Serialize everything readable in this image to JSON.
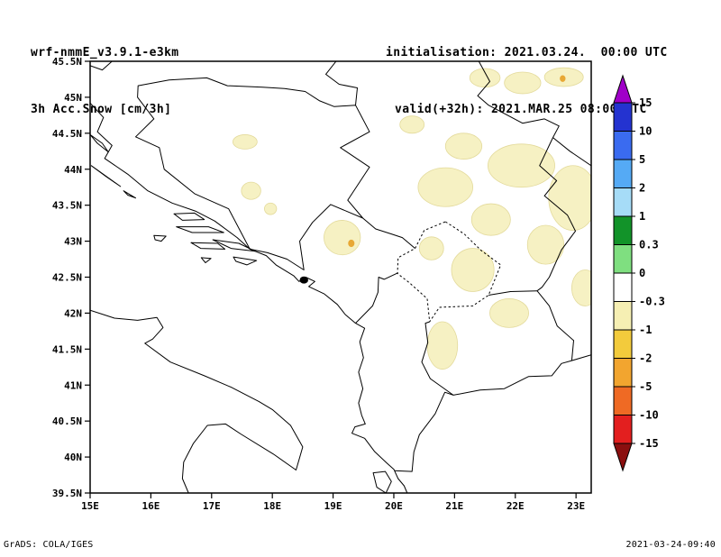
{
  "header": {
    "model": "wrf-nmmE_v3.9.1-e3km",
    "product": "3h Acc.Snow [cm/3h]",
    "init_line": "initialisation: 2021.03.24.  00:00 UTC",
    "valid_line": "valid(+32h): 2021.MAR.25 08:00 UTC"
  },
  "footer": {
    "credit": "GrADS: COLA/IGES",
    "generated": "2021-03-24-09:40"
  },
  "chart_data": {
    "type": "heatmap",
    "title": "3h Acc.Snow [cm/3h]",
    "model": "wrf-nmmE_v3.9.1-e3km",
    "lon_ticks": [
      "15E",
      "16E",
      "17E",
      "18E",
      "19E",
      "20E",
      "21E",
      "22E",
      "23E"
    ],
    "lat_ticks": [
      "45.5N",
      "45N",
      "44.5N",
      "44N",
      "43.5N",
      "43N",
      "42.5N",
      "42N",
      "41.5N",
      "41N",
      "40.5N",
      "40N",
      "39.5N"
    ],
    "lon_range": [
      15,
      23.25
    ],
    "lat_range": [
      39.5,
      45.5
    ],
    "colorbar_levels": [
      "15",
      "10",
      "5",
      "2",
      "1",
      "0.3",
      "0",
      "-0.3",
      "-1",
      "-2",
      "-5",
      "-10",
      "-15"
    ],
    "colorbar_colors": [
      "#a000c8",
      "#2433d0",
      "#3a6bf0",
      "#55aaf5",
      "#a6dcf7",
      "#129329",
      "#7fdf80",
      "#ffffff",
      "#f6efb3",
      "#f3cb3c",
      "#f2a52f",
      "#ef6a24",
      "#e31f1f",
      "#8b0f0f"
    ],
    "grid": false,
    "legend_position": "right"
  },
  "map": {
    "stroke": "#000000",
    "snow_fill": "#f6f1c3",
    "snow_edge": "#e3da9b",
    "dot_fill": "#e8a835",
    "outlines": [
      {
        "name": "adriatic-east-coastline",
        "closed": false,
        "pts": [
          [
            15.0,
            44.92
          ],
          [
            15.22,
            44.72
          ],
          [
            15.12,
            44.52
          ],
          [
            15.36,
            44.33
          ],
          [
            15.24,
            44.15
          ],
          [
            15.62,
            43.93
          ],
          [
            15.95,
            43.7
          ],
          [
            16.35,
            43.53
          ],
          [
            16.73,
            43.42
          ],
          [
            17.05,
            43.28
          ],
          [
            17.42,
            43.05
          ],
          [
            17.63,
            42.89
          ],
          [
            17.9,
            42.8
          ],
          [
            18.06,
            42.67
          ],
          [
            18.35,
            42.52
          ],
          [
            18.44,
            42.44
          ],
          [
            18.55,
            42.5
          ],
          [
            18.7,
            42.44
          ],
          [
            18.6,
            42.37
          ],
          [
            18.85,
            42.27
          ],
          [
            19.07,
            42.12
          ],
          [
            19.2,
            41.98
          ],
          [
            19.37,
            41.86
          ],
          [
            19.52,
            41.79
          ],
          [
            19.44,
            41.6
          ],
          [
            19.5,
            41.38
          ],
          [
            19.42,
            41.18
          ],
          [
            19.49,
            40.95
          ],
          [
            19.42,
            40.75
          ],
          [
            19.47,
            40.58
          ],
          [
            19.53,
            40.46
          ],
          [
            19.36,
            40.42
          ],
          [
            19.31,
            40.33
          ],
          [
            19.52,
            40.26
          ],
          [
            19.68,
            40.08
          ],
          [
            19.88,
            39.92
          ],
          [
            20.0,
            39.83
          ],
          [
            20.07,
            39.7
          ],
          [
            20.17,
            39.6
          ],
          [
            20.22,
            39.5
          ]
        ]
      },
      {
        "name": "italy-coastline",
        "closed": false,
        "pts": [
          [
            15.0,
            42.04
          ],
          [
            15.4,
            41.93
          ],
          [
            15.78,
            41.9
          ],
          [
            16.1,
            41.94
          ],
          [
            16.2,
            41.8
          ],
          [
            16.03,
            41.64
          ],
          [
            15.9,
            41.58
          ],
          [
            16.32,
            41.32
          ],
          [
            16.88,
            41.13
          ],
          [
            17.32,
            40.97
          ],
          [
            17.78,
            40.77
          ],
          [
            18.0,
            40.66
          ],
          [
            18.3,
            40.44
          ],
          [
            18.5,
            40.14
          ],
          [
            18.39,
            39.82
          ],
          [
            18.02,
            40.04
          ],
          [
            17.48,
            40.32
          ],
          [
            17.23,
            40.46
          ],
          [
            16.93,
            40.44
          ],
          [
            16.7,
            40.19
          ],
          [
            16.54,
            39.93
          ],
          [
            16.52,
            39.7
          ],
          [
            16.62,
            39.5
          ]
        ]
      },
      {
        "name": "island-pag",
        "closed": true,
        "pts": [
          [
            15.0,
            44.48
          ],
          [
            15.2,
            44.36
          ],
          [
            15.3,
            44.24
          ],
          [
            15.12,
            44.36
          ]
        ]
      },
      {
        "name": "island-dugi-otok",
        "closed": true,
        "pts": [
          [
            15.02,
            44.05
          ],
          [
            15.3,
            43.88
          ],
          [
            15.5,
            43.76
          ],
          [
            15.26,
            43.9
          ]
        ]
      },
      {
        "name": "island-kornati",
        "closed": true,
        "pts": [
          [
            15.55,
            43.7
          ],
          [
            15.75,
            43.6
          ],
          [
            15.62,
            43.64
          ]
        ]
      },
      {
        "name": "island-brac",
        "closed": true,
        "pts": [
          [
            16.38,
            43.38
          ],
          [
            16.72,
            43.39
          ],
          [
            16.88,
            43.3
          ],
          [
            16.52,
            43.29
          ]
        ]
      },
      {
        "name": "island-hvar",
        "closed": true,
        "pts": [
          [
            16.42,
            43.2
          ],
          [
            16.95,
            43.2
          ],
          [
            17.2,
            43.12
          ],
          [
            16.68,
            43.12
          ]
        ]
      },
      {
        "name": "island-vis",
        "closed": true,
        "pts": [
          [
            16.05,
            43.08
          ],
          [
            16.25,
            43.07
          ],
          [
            16.17,
            43.0
          ],
          [
            16.07,
            43.02
          ]
        ]
      },
      {
        "name": "island-korcula",
        "closed": true,
        "pts": [
          [
            16.66,
            42.98
          ],
          [
            17.1,
            42.97
          ],
          [
            17.22,
            42.89
          ],
          [
            16.82,
            42.9
          ]
        ]
      },
      {
        "name": "peljesac-peninsula",
        "closed": true,
        "pts": [
          [
            17.02,
            43.02
          ],
          [
            17.45,
            42.97
          ],
          [
            17.72,
            42.86
          ],
          [
            17.32,
            42.9
          ]
        ]
      },
      {
        "name": "island-mljet",
        "closed": true,
        "pts": [
          [
            17.36,
            42.78
          ],
          [
            17.74,
            42.73
          ],
          [
            17.58,
            42.67
          ],
          [
            17.4,
            42.72
          ]
        ]
      },
      {
        "name": "island-lastovo",
        "closed": true,
        "pts": [
          [
            16.83,
            42.77
          ],
          [
            16.99,
            42.76
          ],
          [
            16.9,
            42.7
          ]
        ]
      },
      {
        "name": "island-corfu",
        "closed": true,
        "pts": [
          [
            19.66,
            39.78
          ],
          [
            19.86,
            39.8
          ],
          [
            19.96,
            39.66
          ],
          [
            19.87,
            39.5
          ],
          [
            19.72,
            39.58
          ]
        ]
      },
      {
        "name": "border-slovenia-croatia",
        "closed": false,
        "pts": [
          [
            15.0,
            45.44
          ],
          [
            15.2,
            45.38
          ],
          [
            15.36,
            45.5
          ]
        ]
      },
      {
        "name": "border-bosnia",
        "closed": true,
        "pts": [
          [
            15.79,
            45.16
          ],
          [
            16.3,
            45.24
          ],
          [
            16.92,
            45.27
          ],
          [
            17.26,
            45.16
          ],
          [
            17.84,
            45.14
          ],
          [
            18.2,
            45.12
          ],
          [
            18.54,
            45.08
          ],
          [
            18.78,
            44.95
          ],
          [
            19.02,
            44.87
          ],
          [
            19.37,
            44.89
          ],
          [
            19.6,
            44.52
          ],
          [
            19.12,
            44.3
          ],
          [
            19.6,
            44.03
          ],
          [
            19.24,
            43.57
          ],
          [
            19.49,
            43.32
          ],
          [
            18.96,
            43.51
          ],
          [
            18.66,
            43.26
          ],
          [
            18.45,
            43.0
          ],
          [
            18.52,
            42.6
          ],
          [
            18.24,
            42.75
          ],
          [
            17.92,
            42.84
          ],
          [
            17.63,
            42.89
          ],
          [
            17.28,
            43.45
          ],
          [
            16.72,
            43.66
          ],
          [
            16.22,
            44.0
          ],
          [
            16.14,
            44.3
          ],
          [
            15.75,
            44.45
          ],
          [
            16.05,
            44.7
          ],
          [
            15.78,
            45.0
          ]
        ]
      },
      {
        "name": "border-croatia-serbia",
        "closed": false,
        "pts": [
          [
            19.05,
            45.5
          ],
          [
            18.88,
            45.32
          ],
          [
            19.1,
            45.18
          ],
          [
            19.4,
            45.13
          ],
          [
            19.37,
            44.89
          ]
        ]
      },
      {
        "name": "border-serbia-romania-bulgaria",
        "closed": false,
        "pts": [
          [
            21.4,
            45.5
          ],
          [
            21.58,
            45.22
          ],
          [
            21.38,
            45.02
          ],
          [
            21.56,
            44.89
          ],
          [
            22.12,
            44.64
          ],
          [
            22.48,
            44.7
          ],
          [
            22.72,
            44.6
          ],
          [
            22.62,
            44.44
          ],
          [
            22.4,
            44.05
          ],
          [
            22.68,
            43.84
          ],
          [
            22.48,
            43.63
          ],
          [
            22.86,
            43.36
          ],
          [
            22.99,
            43.14
          ],
          [
            22.76,
            42.88
          ],
          [
            22.56,
            42.5
          ],
          [
            22.44,
            42.36
          ],
          [
            22.36,
            42.31
          ]
        ]
      },
      {
        "name": "border-romania-bulgaria-danube",
        "closed": false,
        "pts": [
          [
            22.62,
            44.44
          ],
          [
            22.9,
            44.25
          ],
          [
            23.25,
            44.05
          ]
        ]
      },
      {
        "name": "border-bulgaria-macedonia",
        "closed": false,
        "pts": [
          [
            22.36,
            42.31
          ],
          [
            22.56,
            42.1
          ],
          [
            22.69,
            41.82
          ],
          [
            22.96,
            41.62
          ],
          [
            22.93,
            41.34
          ]
        ]
      },
      {
        "name": "border-greece-bulgaria",
        "closed": false,
        "pts": [
          [
            22.93,
            41.34
          ],
          [
            23.25,
            41.42
          ]
        ]
      },
      {
        "name": "border-serbia-macedonia",
        "closed": false,
        "pts": [
          [
            21.56,
            42.25
          ],
          [
            21.92,
            42.3
          ],
          [
            22.36,
            42.31
          ]
        ]
      },
      {
        "name": "border-macedonia-greece",
        "closed": false,
        "pts": [
          [
            20.98,
            40.86
          ],
          [
            21.42,
            40.93
          ],
          [
            21.82,
            40.95
          ],
          [
            22.22,
            41.12
          ],
          [
            22.6,
            41.13
          ],
          [
            22.76,
            41.3
          ],
          [
            22.93,
            41.34
          ]
        ]
      },
      {
        "name": "border-macedonia-albania",
        "closed": false,
        "pts": [
          [
            20.98,
            40.86
          ],
          [
            20.6,
            41.09
          ],
          [
            20.46,
            41.32
          ],
          [
            20.56,
            41.59
          ],
          [
            20.52,
            41.86
          ],
          [
            20.59,
            41.88
          ]
        ]
      },
      {
        "name": "border-albania-greece",
        "closed": false,
        "pts": [
          [
            20.01,
            39.81
          ],
          [
            20.3,
            39.8
          ],
          [
            20.33,
            40.07
          ],
          [
            20.42,
            40.31
          ],
          [
            20.68,
            40.6
          ],
          [
            20.84,
            40.9
          ],
          [
            20.98,
            40.86
          ]
        ]
      },
      {
        "name": "border-montenegro-albania",
        "closed": false,
        "pts": [
          [
            19.37,
            41.86
          ],
          [
            19.65,
            42.1
          ],
          [
            19.74,
            42.29
          ],
          [
            19.75,
            42.5
          ],
          [
            19.84,
            42.47
          ],
          [
            20.07,
            42.56
          ]
        ]
      },
      {
        "name": "border-montenegro-serbia",
        "closed": false,
        "pts": [
          [
            19.49,
            43.32
          ],
          [
            19.7,
            43.17
          ],
          [
            19.96,
            43.1
          ],
          [
            20.14,
            43.05
          ],
          [
            20.35,
            42.9
          ]
        ]
      },
      {
        "name": "border-kosovo",
        "closed": true,
        "dashed": true,
        "pts": [
          [
            20.85,
            43.27
          ],
          [
            21.16,
            43.1
          ],
          [
            21.44,
            42.87
          ],
          [
            21.76,
            42.67
          ],
          [
            21.56,
            42.25
          ],
          [
            21.3,
            42.1
          ],
          [
            20.75,
            42.08
          ],
          [
            20.59,
            41.88
          ],
          [
            20.55,
            42.2
          ],
          [
            20.26,
            42.42
          ],
          [
            20.06,
            42.55
          ],
          [
            20.07,
            42.77
          ],
          [
            20.35,
            42.9
          ],
          [
            20.5,
            43.15
          ]
        ]
      }
    ],
    "kotor_bay": {
      "lon": 18.52,
      "lat": 42.46,
      "rx": 0.07,
      "ry": 0.05
    },
    "snow_patches": [
      [
        17.55,
        44.38,
        0.2,
        0.1
      ],
      [
        17.65,
        43.7,
        0.16,
        0.12
      ],
      [
        17.97,
        43.45,
        0.1,
        0.08
      ],
      [
        19.15,
        43.05,
        0.3,
        0.24
      ],
      [
        20.3,
        44.62,
        0.2,
        0.12
      ],
      [
        20.85,
        43.75,
        0.45,
        0.27
      ],
      [
        21.15,
        44.32,
        0.3,
        0.18
      ],
      [
        22.1,
        44.05,
        0.55,
        0.3
      ],
      [
        22.95,
        43.6,
        0.4,
        0.45
      ],
      [
        22.5,
        42.95,
        0.3,
        0.27
      ],
      [
        21.6,
        43.3,
        0.32,
        0.22
      ],
      [
        21.3,
        42.6,
        0.35,
        0.3
      ],
      [
        20.62,
        42.9,
        0.2,
        0.16
      ],
      [
        21.9,
        42.0,
        0.32,
        0.2
      ],
      [
        20.8,
        41.55,
        0.25,
        0.33
      ],
      [
        23.15,
        42.35,
        0.22,
        0.25
      ],
      [
        21.5,
        45.27,
        0.25,
        0.13
      ],
      [
        22.12,
        45.2,
        0.3,
        0.15
      ],
      [
        22.8,
        45.28,
        0.32,
        0.13
      ]
    ],
    "snow_dots": [
      [
        19.3,
        42.97,
        0.045
      ],
      [
        22.78,
        45.26,
        0.04
      ]
    ]
  }
}
